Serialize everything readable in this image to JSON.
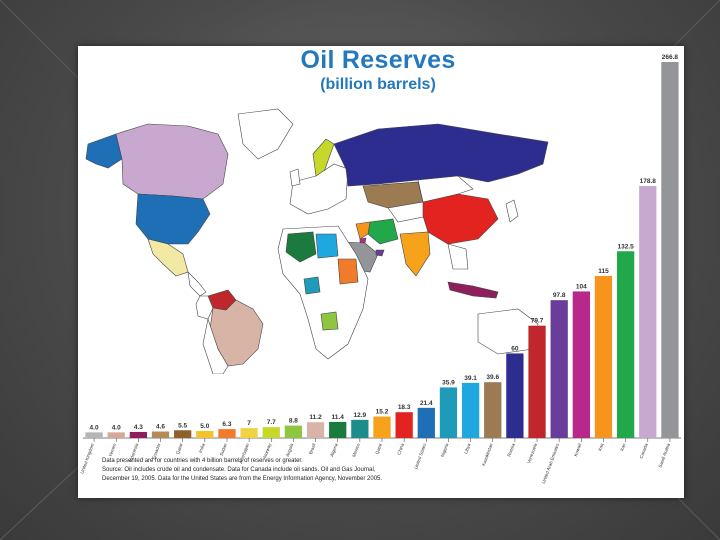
{
  "slide": {
    "title": "Oil Reserves",
    "subtitle": "(billion barrels)",
    "notes": [
      "Data presented are for countries with 4 billion barrels of reserves or greater.",
      "Source: Oil includes crude oil and condensate. Data for Canada include oil sands. Oil and Gas Journal,",
      "December 19, 2005. Data for the United States are from the Energy Information Agency, November 2005."
    ]
  },
  "chart_data": {
    "type": "bar",
    "title": "Oil Reserves",
    "subtitle": "(billion barrels)",
    "categories": [
      "United Kingdom",
      "Yemen",
      "Indonesia",
      "Ecuador",
      "Qatar",
      "India",
      "Sudan",
      "Azerbaijan",
      "Norway",
      "Angola",
      "Brazil",
      "Algeria",
      "Mexico",
      "Qatar",
      "China",
      "United States",
      "Nigeria",
      "Libya",
      "Kazakhstan",
      "Russia",
      "Venezuela",
      "United Arab Emirates",
      "Kuwait",
      "Iraq",
      "Iran",
      "Canada",
      "Saudi Arabia"
    ],
    "values": [
      4.0,
      4.0,
      4.3,
      4.6,
      5.5,
      5.0,
      6.3,
      7,
      7.7,
      8.8,
      11.2,
      11.4,
      12.9,
      15.2,
      18.3,
      21.4,
      35.9,
      39.1,
      39.6,
      60,
      79.7,
      97.8,
      104,
      115,
      132.5,
      178.8,
      266.8
    ],
    "value_labels": [
      "4.0",
      "4.0",
      "4.3",
      "4.6",
      "5.5",
      "5.0",
      "6.3",
      "7",
      "7.7",
      "8.8",
      "11.2",
      "11.4",
      "12.9",
      "15.2",
      "18.3",
      "21.4",
      "35.9",
      "39.1",
      "39.6",
      "60",
      "79.7",
      "97.8",
      "104",
      "115",
      "132.5",
      "178.8",
      "266.8"
    ],
    "colors": [
      "#b5b5b5",
      "#d4a99a",
      "#8e1f5d",
      "#b48a57",
      "#8f5f2c",
      "#f2c42c",
      "#f07b2a",
      "#f1d342",
      "#c6d82a",
      "#8fc63f",
      "#d8b4a6",
      "#1b7a3e",
      "#1d8c8c",
      "#f7a21b",
      "#e3231f",
      "#1f6fb6",
      "#1e9bb8",
      "#1fa7e0",
      "#9c7b52",
      "#2d2d8f",
      "#c0272d",
      "#6a3d9a",
      "#b8278a",
      "#f7941d",
      "#20a84a",
      "#c9a8d0",
      "#939598"
    ],
    "ylim": [
      0,
      266.8
    ],
    "grid": false,
    "legend": "none"
  },
  "map": {
    "colors": {
      "land": "#ffffff",
      "border": "#444444",
      "canada": "#c9a8d0",
      "usa": "#1f6fb6",
      "mexico": "#f2e9a5",
      "venezuela": "#c0272d",
      "brazil": "#d8b4a6",
      "russia": "#2d2d8f",
      "china": "#e3231f",
      "kazakhstan": "#9c7b52",
      "india": "#f7a21b",
      "saudi": "#939598",
      "iran": "#20a84a",
      "iraq": "#f7941d",
      "algeria": "#1b7a3e",
      "libya": "#1fa7e0",
      "nigeria": "#1e9bb8",
      "angola": "#8fc63f",
      "sudan": "#f07b2a",
      "norway": "#c6d82a",
      "indonesia": "#8e1f5d",
      "uae": "#6a3d9a",
      "kuwait": "#b8278a"
    }
  }
}
